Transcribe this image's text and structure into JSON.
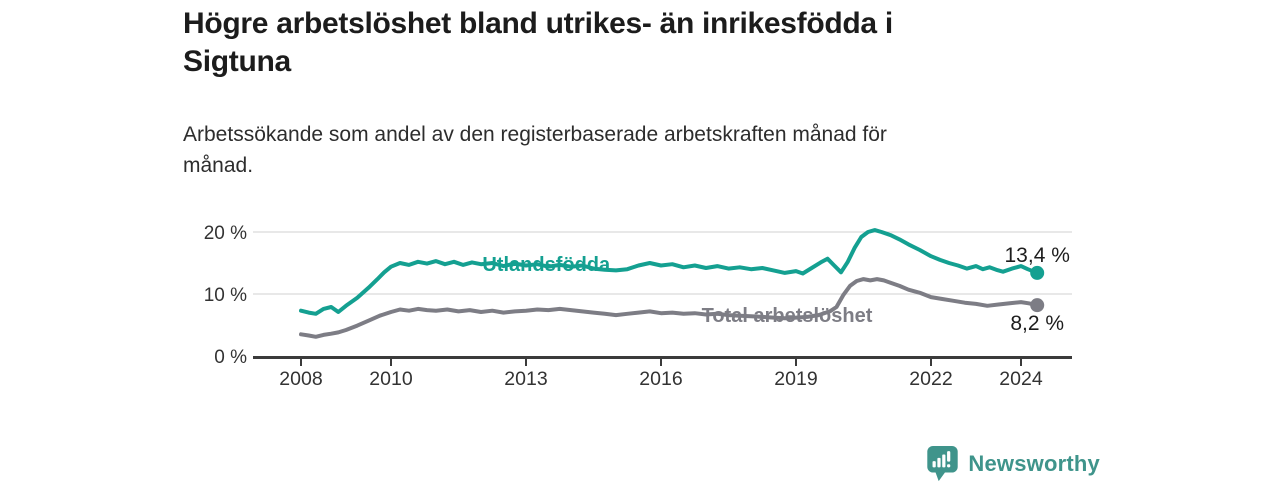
{
  "header": {
    "title_lines": [
      "Högre arbetslöshet bland utrikes- än inrikesfödda i",
      "Sigtuna"
    ],
    "subtitle_lines": [
      "Arbetssökande som andel av den registerbaserade arbetskraften månad för",
      "månad."
    ]
  },
  "chart_data": {
    "type": "line",
    "title": "Högre arbetslöshet bland utrikes- än inrikesfödda i Sigtuna",
    "subtitle": "Arbetssökande som andel av den registerbaserade arbetskraften månad för månad.",
    "unit": "%",
    "grid": "horizontal",
    "legend_position": "inline-labels",
    "x_axis": {
      "range": [
        2006.9,
        2025.1
      ],
      "ticks": [
        {
          "value": 2008,
          "label": "2008"
        },
        {
          "value": 2010,
          "label": "2010"
        },
        {
          "value": 2013,
          "label": "2013"
        },
        {
          "value": 2016,
          "label": "2016"
        },
        {
          "value": 2019,
          "label": "2019"
        },
        {
          "value": 2022,
          "label": "2022"
        },
        {
          "value": 2024,
          "label": "2024"
        }
      ]
    },
    "y_axis": {
      "range": [
        0,
        23
      ],
      "ticks": [
        {
          "value": 0,
          "label": "0 %"
        },
        {
          "value": 10,
          "label": "10 %"
        },
        {
          "value": 20,
          "label": "20 %"
        }
      ]
    },
    "series": [
      {
        "id": "total-arbetsloshet",
        "name": "Total arbetslöshet",
        "color": "#7d7d85",
        "label": {
          "text": "Total arbetslöshet",
          "x": 2018.8,
          "y": 6.6
        },
        "end_label": "8,2 %",
        "end_label_position": "below",
        "end_value": 8.2,
        "x": [
          2008.0,
          2008.17,
          2008.33,
          2008.5,
          2008.67,
          2008.83,
          2009.0,
          2009.25,
          2009.5,
          2009.75,
          2010.0,
          2010.2,
          2010.4,
          2010.6,
          2010.8,
          2011.0,
          2011.25,
          2011.5,
          2011.75,
          2012.0,
          2012.25,
          2012.5,
          2012.75,
          2013.0,
          2013.25,
          2013.5,
          2013.75,
          2014.0,
          2014.25,
          2014.5,
          2014.75,
          2015.0,
          2015.25,
          2015.5,
          2015.75,
          2016.0,
          2016.25,
          2016.5,
          2016.75,
          2017.0,
          2017.25,
          2017.5,
          2017.75,
          2018.0,
          2018.25,
          2018.5,
          2018.75,
          2019.0,
          2019.25,
          2019.5,
          2019.75,
          2019.9,
          2020.05,
          2020.2,
          2020.35,
          2020.5,
          2020.65,
          2020.8,
          2020.95,
          2021.1,
          2021.3,
          2021.5,
          2021.75,
          2022.0,
          2022.25,
          2022.5,
          2022.75,
          2023.0,
          2023.25,
          2023.5,
          2023.75,
          2024.0,
          2024.17,
          2024.36
        ],
        "y": [
          3.5,
          3.3,
          3.1,
          3.4,
          3.6,
          3.8,
          4.2,
          4.9,
          5.7,
          6.5,
          7.1,
          7.5,
          7.3,
          7.6,
          7.4,
          7.3,
          7.5,
          7.2,
          7.4,
          7.1,
          7.3,
          7.0,
          7.2,
          7.3,
          7.5,
          7.4,
          7.6,
          7.4,
          7.2,
          7.0,
          6.8,
          6.6,
          6.8,
          7.0,
          7.2,
          6.9,
          7.0,
          6.8,
          6.9,
          6.7,
          6.8,
          6.6,
          6.5,
          6.4,
          6.3,
          6.2,
          6.1,
          6.2,
          6.3,
          6.6,
          7.2,
          7.9,
          9.8,
          11.3,
          12.1,
          12.4,
          12.2,
          12.4,
          12.2,
          11.8,
          11.3,
          10.7,
          10.2,
          9.5,
          9.2,
          8.9,
          8.6,
          8.4,
          8.1,
          8.3,
          8.5,
          8.7,
          8.5,
          8.2
        ]
      },
      {
        "id": "utlandsfodda",
        "name": "Utlandsfödda",
        "color": "#14a091",
        "label": {
          "text": "Utlandsfödda",
          "x": 2013.45,
          "y": 14.8
        },
        "end_label": "13,4 %",
        "end_label_position": "above",
        "end_value": 13.4,
        "x": [
          2008.0,
          2008.17,
          2008.33,
          2008.5,
          2008.67,
          2008.83,
          2009.0,
          2009.25,
          2009.5,
          2009.7,
          2009.85,
          2010.0,
          2010.2,
          2010.4,
          2010.6,
          2010.8,
          2011.0,
          2011.2,
          2011.4,
          2011.6,
          2011.8,
          2012.0,
          2012.25,
          2012.5,
          2012.75,
          2013.0,
          2013.25,
          2013.5,
          2013.75,
          2014.0,
          2014.25,
          2014.5,
          2014.75,
          2015.0,
          2015.25,
          2015.5,
          2015.75,
          2016.0,
          2016.25,
          2016.5,
          2016.75,
          2017.0,
          2017.25,
          2017.5,
          2017.75,
          2018.0,
          2018.25,
          2018.5,
          2018.75,
          2019.0,
          2019.15,
          2019.35,
          2019.55,
          2019.7,
          2019.85,
          2020.0,
          2020.15,
          2020.3,
          2020.45,
          2020.6,
          2020.75,
          2020.9,
          2021.1,
          2021.3,
          2021.5,
          2021.75,
          2022.0,
          2022.2,
          2022.4,
          2022.6,
          2022.8,
          2023.0,
          2023.15,
          2023.3,
          2023.45,
          2023.6,
          2023.8,
          2024.0,
          2024.15,
          2024.36
        ],
        "y": [
          7.3,
          7.0,
          6.8,
          7.6,
          7.9,
          7.1,
          8.1,
          9.4,
          11.0,
          12.4,
          13.5,
          14.4,
          15.0,
          14.7,
          15.2,
          14.9,
          15.3,
          14.8,
          15.2,
          14.7,
          15.1,
          14.8,
          15.0,
          14.5,
          14.9,
          14.6,
          14.8,
          14.4,
          14.7,
          14.4,
          14.6,
          14.1,
          13.9,
          13.8,
          14.0,
          14.6,
          15.0,
          14.6,
          14.8,
          14.3,
          14.6,
          14.2,
          14.5,
          14.1,
          14.3,
          14.0,
          14.2,
          13.8,
          13.4,
          13.7,
          13.3,
          14.2,
          15.1,
          15.7,
          14.6,
          13.5,
          15.2,
          17.4,
          19.2,
          20.0,
          20.3,
          20.0,
          19.5,
          18.8,
          18.0,
          17.1,
          16.1,
          15.5,
          15.0,
          14.6,
          14.1,
          14.5,
          14.0,
          14.3,
          13.9,
          13.6,
          14.1,
          14.5,
          14.0,
          13.4
        ]
      }
    ],
    "annotation_color": "#1d1d1d",
    "axis_color": "#3b3b3b",
    "grid_color": "#d9d9d9",
    "tick_label_color": "#333333"
  },
  "footer": {
    "brand": "Newsworthy",
    "brand_color": "#3f948b",
    "logo_icon": "bar-chart-speech-bubble-icon"
  }
}
